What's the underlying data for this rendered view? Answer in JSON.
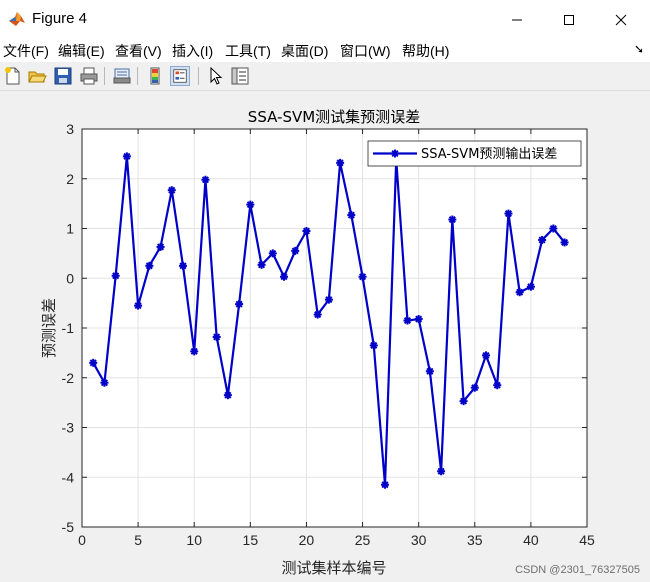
{
  "window": {
    "title": "Figure 4"
  },
  "menu": [
    "文件(F)",
    "编辑(E)",
    "查看(V)",
    "插入(I)",
    "工具(T)",
    "桌面(D)",
    "窗口(W)",
    "帮助(H)"
  ],
  "toolbar": [
    "new-figure-icon",
    "open-icon",
    "save-icon",
    "print-icon",
    "print-preview-icon",
    "colorbar-icon",
    "legend-icon",
    "pointer-icon",
    "property-inspector-icon"
  ],
  "chart_data": {
    "type": "line",
    "title": "SSA-SVM测试集预测误差",
    "xlabel": "测试集样本编号",
    "ylabel": "预测误差",
    "xlim": [
      0,
      45
    ],
    "ylim": [
      -5,
      3
    ],
    "xticks": [
      "0",
      "5",
      "10",
      "15",
      "20",
      "25",
      "30",
      "35",
      "40",
      "45"
    ],
    "yticks": [
      "-5",
      "-4",
      "-3",
      "-2",
      "-1",
      "0",
      "1",
      "2",
      "3"
    ],
    "grid": true,
    "legend_position": "top-right",
    "series": [
      {
        "name": "SSA-SVM预测输出误差",
        "color": "#0000c8",
        "marker": "asterisk",
        "x": [
          1,
          2,
          3,
          4,
          5,
          6,
          7,
          8,
          9,
          10,
          11,
          12,
          13,
          14,
          15,
          16,
          17,
          18,
          19,
          20,
          21,
          22,
          23,
          24,
          25,
          26,
          27,
          28,
          29,
          30,
          31,
          32,
          33,
          34,
          35,
          36,
          37,
          38,
          39,
          40,
          41,
          42,
          43
        ],
        "y": [
          -1.7,
          -2.1,
          0.05,
          2.45,
          -0.55,
          0.25,
          0.63,
          1.77,
          0.25,
          -1.47,
          1.98,
          -1.18,
          -2.35,
          -0.52,
          1.48,
          0.27,
          0.5,
          0.03,
          0.55,
          0.95,
          -0.73,
          -0.43,
          2.32,
          1.27,
          0.03,
          -1.35,
          -4.15,
          2.38,
          -0.85,
          -0.82,
          -1.87,
          -3.88,
          1.18,
          -2.47,
          -2.2,
          -1.55,
          -2.15,
          1.3,
          -0.28,
          -0.17,
          0.77,
          1.0,
          0.72
        ]
      }
    ]
  },
  "watermark": "CSDN @2301_76327505"
}
